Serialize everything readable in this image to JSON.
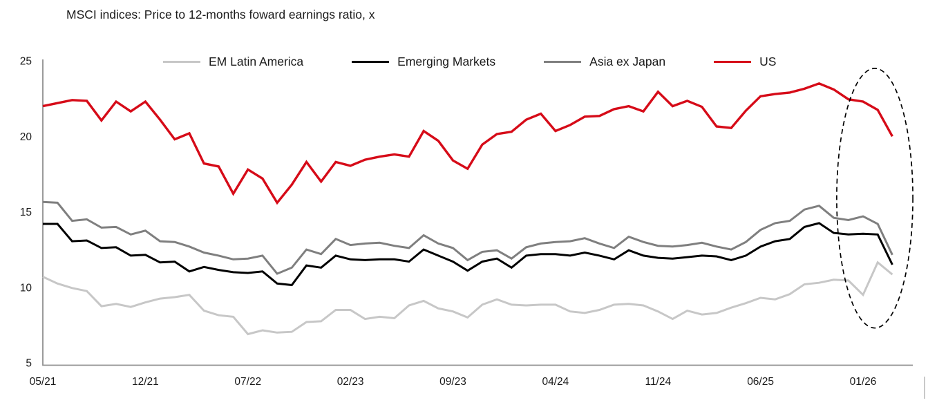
{
  "title": "MSCI indices: Price to 12-months foward earnings ratio, x",
  "colors": {
    "background": "#ffffff",
    "axis": "#8f8f8f",
    "text": "#1a1a1a",
    "annotation": "#000000"
  },
  "chart_data": {
    "type": "line",
    "title": "MSCI indices: Price to 12-months foward earnings ratio, x",
    "xlabel": "",
    "ylabel": "",
    "x_unit": "monthly observations starting 05/2021",
    "x_tick_labels": [
      "05/21",
      "12/21",
      "07/22",
      "02/23",
      "09/23",
      "04/24",
      "11/24",
      "06/25",
      "01/26"
    ],
    "x_tick_month_index": [
      0,
      7,
      14,
      21,
      28,
      35,
      42,
      49,
      56
    ],
    "y_ticks": [
      5,
      10,
      15,
      20,
      25
    ],
    "ylim": [
      5,
      25
    ],
    "xlim_months": [
      0,
      59.4
    ],
    "grid": false,
    "legend_position": "top",
    "series": [
      {
        "name": "EM Latin America",
        "color": "#c7c7c7",
        "width": 3,
        "values": [
          10.7,
          10.25,
          9.95,
          9.75,
          8.75,
          8.9,
          8.7,
          9.0,
          9.25,
          9.35,
          9.5,
          8.45,
          8.15,
          8.05,
          6.9,
          7.15,
          7.0,
          7.05,
          7.7,
          7.75,
          8.5,
          8.5,
          7.9,
          8.05,
          7.95,
          8.8,
          9.1,
          8.6,
          8.4,
          8.0,
          8.85,
          9.2,
          8.85,
          8.8,
          8.85,
          8.85,
          8.4,
          8.3,
          8.5,
          8.85,
          8.9,
          8.8,
          8.4,
          7.9,
          8.45,
          8.2,
          8.3,
          8.65,
          8.95,
          9.3,
          9.2,
          9.55,
          10.2,
          10.3,
          10.5,
          10.45,
          9.5,
          11.65,
          10.85
        ]
      },
      {
        "name": "Emerging Markets",
        "color": "#000000",
        "width": 3,
        "values": [
          14.2,
          14.2,
          13.05,
          13.1,
          12.6,
          12.65,
          12.1,
          12.15,
          11.65,
          11.7,
          11.05,
          11.35,
          11.15,
          11.0,
          10.95,
          11.05,
          10.25,
          10.15,
          11.45,
          11.3,
          12.1,
          11.85,
          11.8,
          11.85,
          11.85,
          11.7,
          12.5,
          12.1,
          11.7,
          11.1,
          11.7,
          11.9,
          11.3,
          12.1,
          12.2,
          12.2,
          12.1,
          12.3,
          12.1,
          11.85,
          12.45,
          12.1,
          11.95,
          11.9,
          12.0,
          12.1,
          12.05,
          11.8,
          12.1,
          12.7,
          13.05,
          13.2,
          14.0,
          14.25,
          13.6,
          13.5,
          13.55,
          13.5,
          11.5
        ]
      },
      {
        "name": "Asia ex Japan",
        "color": "#7f7f7f",
        "width": 3,
        "values": [
          15.65,
          15.6,
          14.4,
          14.5,
          13.95,
          14.0,
          13.5,
          13.75,
          13.05,
          13.0,
          12.7,
          12.3,
          12.1,
          11.85,
          11.9,
          12.1,
          10.9,
          11.3,
          12.5,
          12.2,
          13.2,
          12.8,
          12.9,
          12.95,
          12.75,
          12.6,
          13.45,
          12.9,
          12.6,
          11.8,
          12.35,
          12.45,
          11.9,
          12.65,
          12.9,
          13.0,
          13.05,
          13.25,
          12.9,
          12.6,
          13.35,
          13.0,
          12.75,
          12.7,
          12.8,
          12.95,
          12.7,
          12.5,
          13.0,
          13.8,
          14.25,
          14.4,
          15.15,
          15.4,
          14.6,
          14.45,
          14.7,
          14.2,
          12.15
        ]
      },
      {
        "name": "US",
        "color": "#d60b18",
        "width": 3.4,
        "values": [
          22.0,
          22.2,
          22.4,
          22.35,
          21.05,
          22.3,
          21.65,
          22.3,
          21.1,
          19.8,
          20.2,
          18.2,
          18.0,
          16.2,
          17.8,
          17.2,
          15.6,
          16.8,
          18.3,
          17.0,
          18.3,
          18.05,
          18.45,
          18.65,
          18.8,
          18.65,
          20.35,
          19.7,
          18.4,
          17.85,
          19.45,
          20.15,
          20.3,
          21.1,
          21.5,
          20.35,
          20.75,
          21.3,
          21.35,
          21.8,
          22.0,
          21.65,
          22.95,
          22.0,
          22.35,
          21.95,
          20.65,
          20.55,
          21.7,
          22.65,
          22.8,
          22.9,
          23.15,
          23.5,
          23.1,
          22.45,
          22.3,
          21.75,
          20.0
        ]
      }
    ],
    "annotation_ellipse": {
      "description": "dashed ellipse highlighting the latest de-rating at the right edge",
      "center_month": 56.8,
      "center_value": 15.9,
      "rx_months": 2.6,
      "ry_values": 8.6,
      "dash": [
        7,
        5
      ],
      "stroke_width": 1.7
    }
  }
}
